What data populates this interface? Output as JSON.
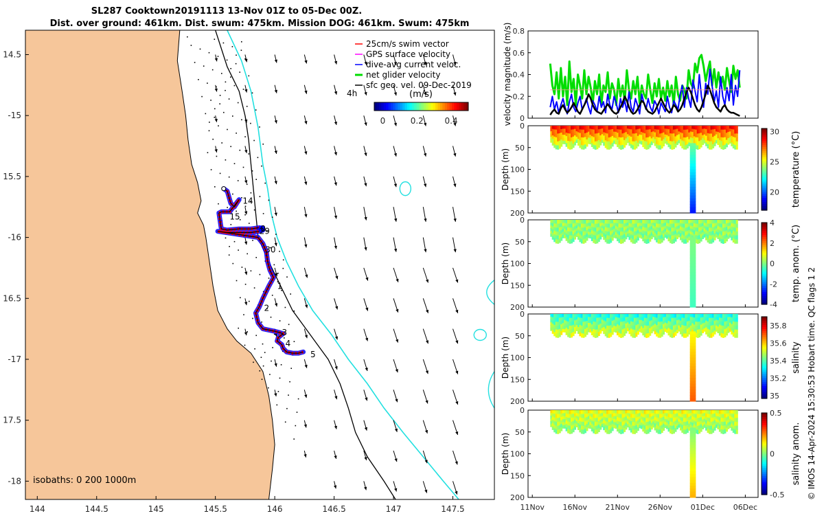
{
  "figure": {
    "title_line1": "SL287 Cooktown20191113 13-Nov 01Z to 05-Dec 00Z.",
    "title_line2": "Dist. over ground: 461km. Dist. swum: 475km. Mission DOG: 461km. Swum: 475km",
    "credit": "© IMOS 14-Apr-2024 15:30:53 Hobart time. QC flags 1  2"
  },
  "chart_data": [
    {
      "id": "map",
      "type": "scatter",
      "title": "SL287 Cooktown20191113 13-Nov 01Z to 05-Dec 00Z.",
      "xlim": [
        143.9,
        147.85
      ],
      "ylim": [
        -18.15,
        -14.3
      ],
      "xticks": [
        144,
        144.5,
        145,
        145.5,
        146,
        146.5,
        147,
        147.5
      ],
      "xticklabels": [
        "144",
        "144.5",
        "145",
        "145.5",
        "146",
        "146.5",
        "147",
        "147.5"
      ],
      "yticks": [
        -14.5,
        -15,
        -15.5,
        -16,
        -16.5,
        -17,
        -17.5,
        -18
      ],
      "yticklabels": [
        "14.5",
        "-15",
        "15.5",
        "-16",
        "16.5",
        "-17",
        "17.5",
        "-18"
      ],
      "legend": {
        "position": "top-right",
        "entries": [
          {
            "label": "25cm/s swim vector",
            "color": "#ff0000"
          },
          {
            "label": "GPS surface velocity",
            "color": "#ff00ff"
          },
          {
            "label": "dive-avg current veloc.",
            "color": "#0000ff"
          },
          {
            "label": "net glider velocity",
            "color": "#00dd00"
          },
          {
            "label": "sfc geo. vel. 09-Dec-2019",
            "color": "#000000"
          }
        ],
        "note": "4h"
      },
      "colorbar": {
        "label": "(m/s)",
        "ticks": [
          "0",
          "0.2",
          "0.4"
        ],
        "range": [
          -0.05,
          0.5
        ]
      },
      "track": [
        [
          145.57,
          -15.6
        ],
        [
          145.6,
          -15.62
        ],
        [
          145.63,
          -15.72
        ],
        [
          145.66,
          -15.75
        ],
        [
          145.7,
          -15.69
        ],
        [
          145.62,
          -15.79
        ],
        [
          145.55,
          -15.79
        ],
        [
          145.53,
          -15.8
        ],
        [
          145.55,
          -15.93
        ],
        [
          145.6,
          -15.94
        ],
        [
          145.7,
          -15.93
        ],
        [
          145.8,
          -15.93
        ],
        [
          145.87,
          -15.92
        ],
        [
          145.9,
          -15.94
        ],
        [
          145.87,
          -15.95
        ],
        [
          145.8,
          -15.96
        ],
        [
          145.7,
          -15.96
        ],
        [
          145.6,
          -15.96
        ],
        [
          145.52,
          -15.95
        ],
        [
          145.86,
          -16.0
        ],
        [
          145.9,
          -16.05
        ],
        [
          145.93,
          -16.12
        ],
        [
          145.94,
          -16.2
        ],
        [
          145.96,
          -16.27
        ],
        [
          145.99,
          -16.33
        ],
        [
          145.95,
          -16.4
        ],
        [
          145.9,
          -16.5
        ],
        [
          145.87,
          -16.57
        ],
        [
          145.84,
          -16.62
        ],
        [
          145.86,
          -16.7
        ],
        [
          145.9,
          -16.75
        ],
        [
          145.95,
          -16.76
        ],
        [
          146.0,
          -16.77
        ],
        [
          146.04,
          -16.78
        ],
        [
          146.07,
          -16.79
        ],
        [
          146.03,
          -16.82
        ],
        [
          146.02,
          -16.85
        ],
        [
          146.06,
          -16.88
        ],
        [
          146.07,
          -16.91
        ],
        [
          146.1,
          -16.94
        ],
        [
          146.15,
          -16.95
        ],
        [
          146.2,
          -16.95
        ],
        [
          146.24,
          -16.94
        ]
      ],
      "day_labels": [
        {
          "text": "14",
          "lon": 145.73,
          "lat": -15.7
        },
        {
          "text": "15",
          "lon": 145.62,
          "lat": -15.83
        },
        {
          "text": "29",
          "lon": 145.87,
          "lat": -15.95
        },
        {
          "text": "0",
          "lon": 145.88,
          "lat": -15.93
        },
        {
          "text": "30",
          "lon": 145.92,
          "lat": -16.1
        },
        {
          "text": "1",
          "lon": 146.02,
          "lat": -16.4
        },
        {
          "text": "2",
          "lon": 145.91,
          "lat": -16.58
        },
        {
          "text": "3",
          "lon": 146.06,
          "lat": -16.78
        },
        {
          "text": "4",
          "lon": 146.09,
          "lat": -16.87
        },
        {
          "text": "5",
          "lon": 146.3,
          "lat": -16.96
        }
      ],
      "annotation": "isobaths: 0   200  1000m"
    },
    {
      "id": "velocity",
      "type": "line",
      "ylabel": "velocity magnitude (m/s)",
      "ylim": [
        0,
        0.8
      ],
      "yticks": [
        0,
        0.2,
        0.4,
        0.6,
        0.8
      ],
      "yticklabels": [
        "0",
        "0.2",
        "0.4",
        "0.6",
        "0.8"
      ],
      "xlim": [
        10.5,
        37.5
      ],
      "x_start": 13.1,
      "x_step": 0.25,
      "series": [
        {
          "color": "#00dd00",
          "values": [
            0.5,
            0.3,
            0.22,
            0.42,
            0.18,
            0.46,
            0.2,
            0.38,
            0.12,
            0.52,
            0.24,
            0.36,
            0.12,
            0.4,
            0.3,
            0.18,
            0.44,
            0.22,
            0.38,
            0.28,
            0.14,
            0.34,
            0.22,
            0.4,
            0.12,
            0.3,
            0.24,
            0.42,
            0.18,
            0.32,
            0.26,
            0.12,
            0.36,
            0.2,
            0.3,
            0.16,
            0.44,
            0.26,
            0.18,
            0.34,
            0.22,
            0.38,
            0.14,
            0.3,
            0.22,
            0.18,
            0.4,
            0.26,
            0.14,
            0.32,
            0.2,
            0.36,
            0.18,
            0.28,
            0.16,
            0.34,
            0.2,
            0.3,
            0.12,
            0.38,
            0.22,
            0.16,
            0.3,
            0.26,
            0.18,
            0.44,
            0.32,
            0.28,
            0.5,
            0.42,
            0.55,
            0.58,
            0.48,
            0.34,
            0.44,
            0.52,
            0.3,
            0.45,
            0.28,
            0.42,
            0.3,
            0.38,
            0.26,
            0.46,
            0.34,
            0.24,
            0.48,
            0.36,
            0.44,
            0.28
          ]
        },
        {
          "color": "#0000ff",
          "values": [
            0.1,
            0.2,
            0.08,
            0.15,
            0.05,
            0.12,
            0.18,
            0.1,
            0.04,
            0.15,
            0.22,
            0.1,
            0.06,
            0.14,
            0.2,
            0.08,
            0.12,
            0.18,
            0.1,
            0.04,
            0.16,
            0.12,
            0.06,
            0.2,
            0.1,
            0.15,
            0.05,
            0.22,
            0.12,
            0.08,
            0.2,
            0.14,
            0.05,
            0.18,
            0.1,
            0.16,
            0.06,
            0.24,
            0.1,
            0.06,
            0.18,
            0.12,
            0.04,
            0.22,
            0.14,
            0.08,
            0.18,
            0.1,
            0.06,
            0.16,
            0.12,
            0.04,
            0.14,
            0.1,
            0.06,
            0.2,
            0.1,
            0.05,
            0.16,
            0.12,
            0.08,
            0.22,
            0.3,
            0.1,
            0.28,
            0.18,
            0.1,
            0.35,
            0.25,
            0.15,
            0.4,
            0.2,
            0.1,
            0.32,
            0.22,
            0.45,
            0.3,
            0.15,
            0.25,
            0.1,
            0.38,
            0.2,
            0.12,
            0.28,
            0.16,
            0.4,
            0.12,
            0.3,
            0.2,
            0.44
          ]
        },
        {
          "color": "#000000",
          "values": [
            0.03,
            0.06,
            0.08,
            0.05,
            0.04,
            0.09,
            0.12,
            0.08,
            0.05,
            0.07,
            0.1,
            0.14,
            0.1,
            0.06,
            0.04,
            0.08,
            0.12,
            0.16,
            0.22,
            0.18,
            0.12,
            0.08,
            0.06,
            0.05,
            0.04,
            0.07,
            0.1,
            0.13,
            0.1,
            0.07,
            0.05,
            0.04,
            0.06,
            0.1,
            0.14,
            0.2,
            0.16,
            0.1,
            0.06,
            0.04,
            0.05,
            0.08,
            0.12,
            0.16,
            0.14,
            0.09,
            0.06,
            0.05,
            0.04,
            0.06,
            0.1,
            0.14,
            0.18,
            0.14,
            0.1,
            0.07,
            0.05,
            0.08,
            0.12,
            0.1,
            0.06,
            0.08,
            0.12,
            0.18,
            0.24,
            0.28,
            0.24,
            0.18,
            0.12,
            0.08,
            0.06,
            0.1,
            0.16,
            0.22,
            0.3,
            0.26,
            0.2,
            0.14,
            0.1,
            0.08,
            0.06,
            0.1,
            0.12,
            0.08,
            0.06,
            0.05,
            0.05,
            0.04,
            0.03,
            0.02
          ]
        },
        {
          "color": "#ff9999",
          "values": [
            0.26,
            0.26,
            0.26,
            0.26,
            0.26,
            0.26,
            0.26,
            0.26,
            0.26,
            0.26,
            0.26,
            0.26,
            0.26,
            0.26,
            0.26,
            0.26,
            0.26,
            0.26,
            0.26,
            0.26,
            0.26,
            0.26,
            0.26,
            0.26,
            0.26,
            0.26,
            0.26,
            0.26,
            0.26,
            0.26,
            0.26,
            0.26,
            0.26,
            0.26,
            0.26,
            0.26,
            0.26,
            0.26,
            0.26,
            0.26,
            0.26,
            0.26,
            0.26,
            0.26,
            0.26,
            0.26,
            0.26,
            0.26,
            0.26,
            0.26,
            0.26,
            0.26,
            0.26,
            0.26,
            0.26,
            0.26,
            0.26,
            0.26,
            0.26,
            0.26,
            0.26,
            0.26,
            0.26,
            0.26,
            0.26,
            0.26,
            0.26,
            0.26,
            0.26,
            0.26,
            0.26,
            0.26,
            0.26,
            0.26,
            0.26,
            0.26,
            0.26,
            0.26,
            0.26,
            0.26,
            0.26,
            0.26,
            0.26,
            0.26,
            0.26,
            0.26,
            0.26,
            0.26,
            0.26,
            0.26
          ]
        }
      ]
    },
    {
      "id": "temperature",
      "type": "heatmap",
      "ylabel": "Depth (m)",
      "ylim": [
        0,
        200
      ],
      "yticks": [
        0,
        50,
        100,
        150,
        200
      ],
      "yticklabels": [
        "0",
        "50",
        "100",
        "150",
        "200"
      ],
      "colorbar": {
        "label": "temperature (°C)",
        "range": [
          17,
          30.5
        ],
        "ticks": [
          20,
          25,
          30
        ],
        "ticklabels": [
          "20",
          "25",
          "30"
        ]
      },
      "surface_value": 28.6,
      "deep_value": 23.5,
      "bottom_value": 19.0
    },
    {
      "id": "temp_anom",
      "type": "heatmap",
      "ylabel": "Depth (m)",
      "ylim": [
        0,
        200
      ],
      "yticks": [
        0,
        50,
        100,
        150,
        200
      ],
      "yticklabels": [
        "0",
        "50",
        "100",
        "150",
        "200"
      ],
      "colorbar": {
        "label": "temp. anom. (°C)",
        "range": [
          -4,
          4
        ],
        "ticks": [
          -4,
          -2,
          0,
          2,
          4
        ],
        "ticklabels": [
          "-4",
          "-2",
          "0",
          "2",
          "4"
        ]
      },
      "surface_value": 0.2,
      "deep_value": 0.0,
      "bottom_value": -0.5
    },
    {
      "id": "salinity",
      "type": "heatmap",
      "ylabel": "Depth (m)",
      "ylim": [
        0,
        200
      ],
      "yticks": [
        0,
        50,
        100,
        150,
        200
      ],
      "yticklabels": [
        "0",
        "50",
        "100",
        "150",
        "200"
      ],
      "colorbar": {
        "label": "salinity",
        "range": [
          34.97,
          35.9
        ],
        "ticks": [
          35,
          35.2,
          35.4,
          35.6,
          35.8
        ],
        "ticklabels": [
          "35",
          "35.2",
          "35.4",
          "35.6",
          "35.8"
        ]
      },
      "surface_value": 35.35,
      "deep_value": 35.55,
      "bottom_value": 35.7
    },
    {
      "id": "sal_anom",
      "type": "heatmap",
      "ylabel": "Depth (m)",
      "ylim": [
        0,
        200
      ],
      "yticks": [
        0,
        50,
        100,
        150,
        200
      ],
      "yticklabels": [
        "0",
        "50",
        "100",
        "150",
        "200"
      ],
      "xlim": [
        10.5,
        37.5
      ],
      "xticks": [
        11,
        16,
        21,
        26,
        31,
        36
      ],
      "xticklabels": [
        "11Nov",
        "16Nov",
        "21Nov",
        "26Nov",
        "01Dec",
        "06Dec"
      ],
      "colorbar": {
        "label": "salinity anom.",
        "range": [
          -0.5,
          0.5
        ],
        "ticks": [
          -0.5,
          0,
          0.5
        ],
        "ticklabels": [
          "-0.5",
          "0",
          "0.5"
        ]
      },
      "surface_value": 0.1,
      "deep_value": 0.0,
      "bottom_value": 0.2
    }
  ]
}
